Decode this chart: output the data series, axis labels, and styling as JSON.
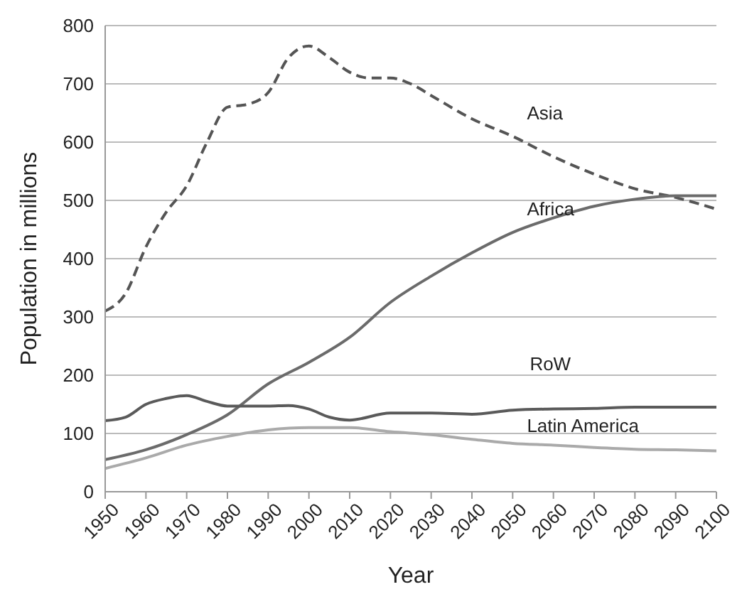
{
  "chart_data": {
    "type": "line",
    "xlabel": "Year",
    "ylabel": "Population in millions",
    "xlim": [
      1950,
      2100
    ],
    "xticks": [
      1950,
      1960,
      1970,
      1980,
      1990,
      2000,
      2010,
      2020,
      2030,
      2040,
      2050,
      2060,
      2070,
      2080,
      2090,
      2100
    ],
    "ylim": [
      0,
      800
    ],
    "yticks": [
      0,
      100,
      200,
      300,
      400,
      500,
      600,
      700,
      800
    ],
    "grid": "y",
    "marker": "none",
    "series": [
      {
        "name": "Asia",
        "color": "#555555",
        "line_style": "dashed",
        "x": [
          1950,
          1955,
          1960,
          1965,
          1970,
          1975,
          1980,
          1985,
          1990,
          1995,
          2000,
          2005,
          2010,
          2015,
          2020,
          2025,
          2030,
          2040,
          2050,
          2060,
          2070,
          2080,
          2090,
          2100
        ],
        "values": [
          310,
          340,
          420,
          480,
          525,
          600,
          660,
          665,
          685,
          745,
          765,
          745,
          720,
          710,
          710,
          700,
          680,
          640,
          610,
          575,
          545,
          520,
          505,
          485
        ]
      },
      {
        "name": "Africa",
        "color": "#6b6b6b",
        "line_style": "solid",
        "x": [
          1950,
          1960,
          1970,
          1980,
          1990,
          2000,
          2010,
          2020,
          2030,
          2040,
          2050,
          2060,
          2070,
          2080,
          2090,
          2100
        ],
        "values": [
          55,
          72,
          98,
          132,
          185,
          222,
          265,
          325,
          370,
          410,
          445,
          470,
          490,
          502,
          508,
          508
        ]
      },
      {
        "name": "RoW",
        "color": "#5a5a5a",
        "line_style": "solid",
        "x": [
          1950,
          1955,
          1960,
          1965,
          1970,
          1975,
          1980,
          1990,
          1995,
          2000,
          2005,
          2010,
          2020,
          2030,
          2040,
          2050,
          2060,
          2070,
          2080,
          2090,
          2100
        ],
        "values": [
          122,
          128,
          150,
          160,
          165,
          155,
          147,
          147,
          148,
          142,
          128,
          123,
          135,
          135,
          133,
          140,
          142,
          143,
          145,
          145,
          145
        ]
      },
      {
        "name": "Latin America",
        "color": "#aaaaaa",
        "line_style": "solid",
        "x": [
          1950,
          1960,
          1970,
          1980,
          1990,
          2000,
          2010,
          2020,
          2030,
          2040,
          2050,
          2060,
          2070,
          2080,
          2090,
          2100
        ],
        "values": [
          40,
          58,
          80,
          95,
          106,
          110,
          110,
          103,
          98,
          90,
          83,
          80,
          76,
          73,
          72,
          70
        ]
      }
    ]
  }
}
